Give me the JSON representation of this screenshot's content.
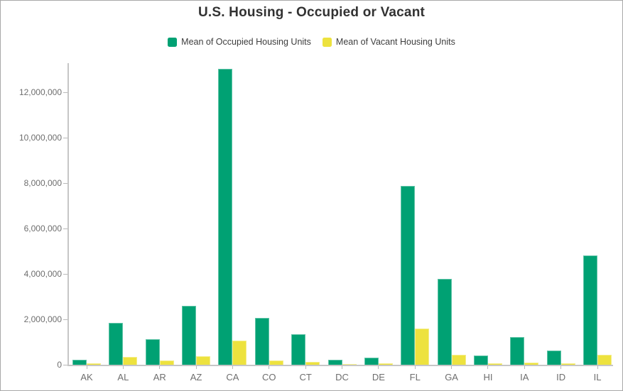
{
  "title": "U.S. Housing - Occupied or Vacant",
  "legend": {
    "items": [
      {
        "label": "Mean of Occupied Housing Units",
        "color": "#00a173"
      },
      {
        "label": "Mean of Vacant Housing Units",
        "color": "#ede23e"
      }
    ]
  },
  "chart_data": {
    "type": "bar",
    "title": "U.S. Housing - Occupied or Vacant",
    "categories": [
      "AK",
      "AL",
      "AR",
      "AZ",
      "CA",
      "CO",
      "CT",
      "DC",
      "DE",
      "FL",
      "GA",
      "HI",
      "IA",
      "ID",
      "IL"
    ],
    "series": [
      {
        "name": "Mean of Occupied Housing Units",
        "color": "#00a173",
        "values": [
          230000,
          1840000,
          1120000,
          2580000,
          13040000,
          2060000,
          1340000,
          230000,
          310000,
          7880000,
          3790000,
          420000,
          1220000,
          620000,
          4810000
        ]
      },
      {
        "name": "Mean of Vacant Housing Units",
        "color": "#ede23e",
        "values": [
          60000,
          330000,
          180000,
          370000,
          1060000,
          185000,
          130000,
          30000,
          70000,
          1580000,
          440000,
          60000,
          100000,
          55000,
          440000
        ]
      }
    ],
    "xlabel": "",
    "ylabel": "",
    "ylim": [
      0,
      13200000
    ],
    "y_ticks": [
      0,
      2000000,
      4000000,
      6000000,
      8000000,
      10000000,
      12000000
    ],
    "y_tick_labels": [
      "0",
      "2,000,000",
      "4,000,000",
      "6,000,000",
      "8,000,000",
      "10,000,000",
      "12,000,000"
    ],
    "grid": false,
    "legend_position": "top"
  },
  "colors": {
    "axis_line": "#c6c6c6",
    "tick_mark": "#b9b9b9",
    "axis_text": "#6e6e6e",
    "title_text": "#323232",
    "legend_text": "#3d3d3d",
    "frame_border": "#a9a9a9",
    "background": "#ffffff"
  }
}
